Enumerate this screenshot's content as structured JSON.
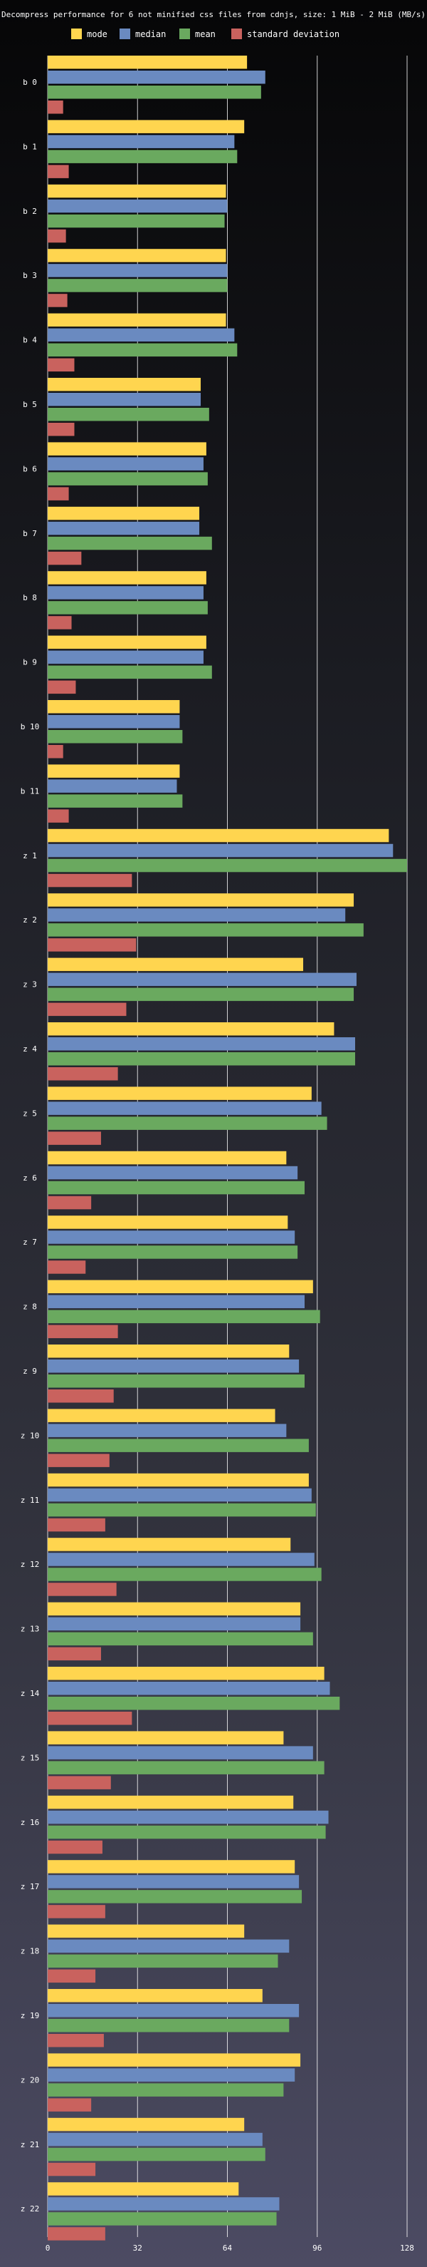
{
  "chart_data": {
    "type": "bar",
    "orientation": "horizontal",
    "title": "Decompress performance for 6 not minified css files from cdnjs, size: 1 MiB - 2 MiB (MB/s)",
    "legend_position": "top",
    "grid": true,
    "xlim": [
      0,
      128
    ],
    "xticks": [
      "0",
      "32",
      "64",
      "96",
      "128"
    ],
    "categories": [
      "b 0",
      "b 1",
      "b 2",
      "b 3",
      "b 4",
      "b 5",
      "b 6",
      "b 7",
      "b 8",
      "b 9",
      "b 10",
      "b 11",
      "z 1",
      "z 2",
      "z 3",
      "z 4",
      "z 5",
      "z 6",
      "z 7",
      "z 8",
      "z 9",
      "z 10",
      "z 11",
      "z 12",
      "z 13",
      "z 14",
      "z 15",
      "z 16",
      "z 17",
      "z 18",
      "z 19",
      "z 20",
      "z 21",
      "z 22"
    ],
    "series": [
      {
        "name": "mode",
        "color": "#ffd54f",
        "values": [
          71,
          70,
          63.5,
          63.5,
          63.5,
          54.5,
          56.5,
          54,
          56.5,
          56.5,
          47,
          47,
          121.5,
          109,
          91,
          102,
          94,
          85,
          85.5,
          94.5,
          86,
          81,
          93,
          86.5,
          90,
          98.5,
          84,
          87.5,
          88,
          70,
          76.5,
          90,
          70,
          68
        ]
      },
      {
        "name": "median",
        "color": "#6a8ac0",
        "values": [
          77.5,
          66.5,
          64,
          64,
          66.5,
          54.5,
          55.5,
          54,
          55.5,
          55.5,
          47,
          46,
          123,
          106,
          110,
          109.5,
          97.5,
          89,
          88,
          91.5,
          89.5,
          85,
          94,
          95,
          90,
          100.5,
          94.5,
          100,
          89.5,
          86,
          89.5,
          88,
          76.5,
          82.5
        ]
      },
      {
        "name": "mean",
        "color": "#6aa95f",
        "values": [
          76,
          67.5,
          63,
          64,
          67.5,
          57.5,
          57,
          58.5,
          57,
          58.5,
          48,
          48,
          128,
          112.5,
          109,
          109.5,
          99.5,
          91.5,
          89,
          97,
          91.5,
          93,
          95.5,
          97.5,
          94.5,
          104,
          98.5,
          99,
          90.5,
          82,
          86,
          84,
          77.5,
          81.5
        ]
      },
      {
        "name": "standard deviation",
        "color": "#c9625e",
        "values": [
          5.5,
          7.5,
          6.5,
          7,
          9.5,
          9.5,
          7.5,
          12,
          8.5,
          10,
          5.5,
          7.5,
          30,
          31.5,
          28,
          25,
          19,
          15.5,
          13.5,
          25,
          23.5,
          22,
          20.5,
          24.5,
          19,
          30,
          22.5,
          19.5,
          20.5,
          17,
          20,
          15.5,
          17,
          20.5
        ]
      }
    ]
  }
}
